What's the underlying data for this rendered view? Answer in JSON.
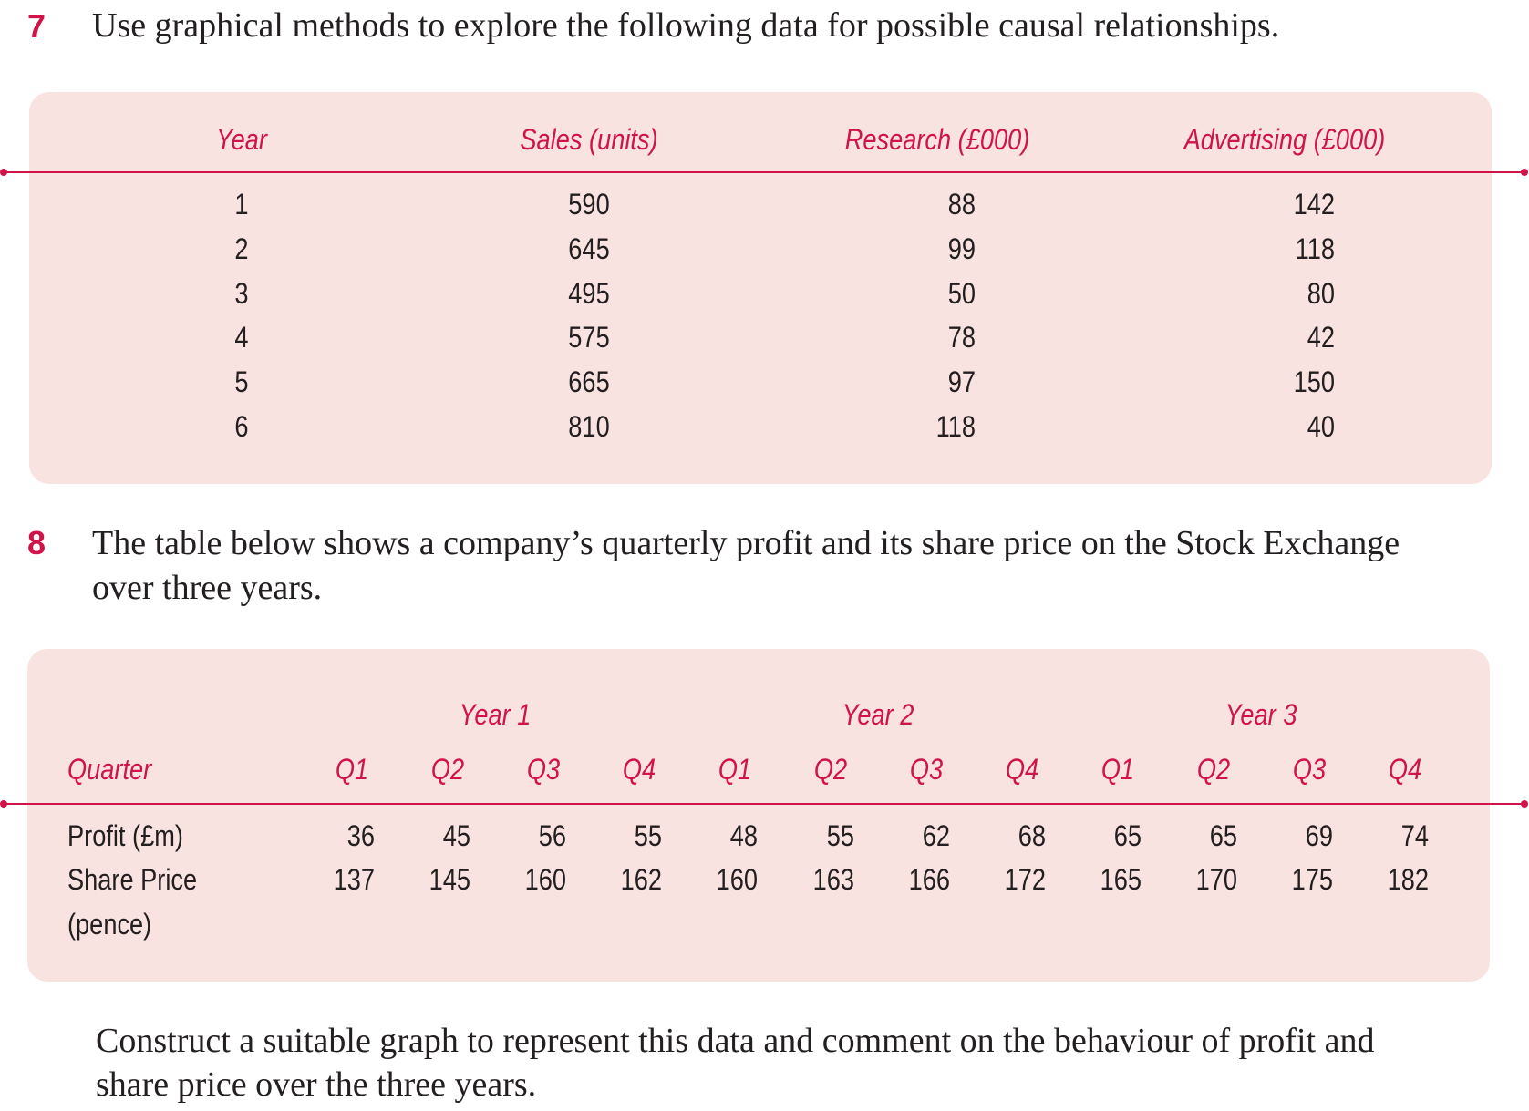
{
  "q7": {
    "number": "7",
    "text": "Use graphical methods to explore the following data for possible causal relationships.",
    "table": {
      "headers": [
        "Year",
        "Sales (units)",
        "Research (£000)",
        "Advertising (£000)"
      ],
      "rows": [
        [
          "1",
          "590",
          "88",
          "142"
        ],
        [
          "2",
          "645",
          "99",
          "118"
        ],
        [
          "3",
          "495",
          "50",
          "80"
        ],
        [
          "4",
          "575",
          "78",
          "42"
        ],
        [
          "5",
          "665",
          "97",
          "150"
        ],
        [
          "6",
          "810",
          "118",
          "40"
        ]
      ]
    }
  },
  "q8": {
    "number": "8",
    "text_line1": "The table below shows a company’s quarterly profit and its share price on the Stock Exchange",
    "text_line2": "over three years.",
    "table": {
      "years": [
        "Year 1",
        "Year 2",
        "Year 3"
      ],
      "quarter_label": "Quarter",
      "quarters": [
        "Q1",
        "Q2",
        "Q3",
        "Q4",
        "Q1",
        "Q2",
        "Q3",
        "Q4",
        "Q1",
        "Q2",
        "Q3",
        "Q4"
      ],
      "profit_label": "Profit (£m)",
      "profit": [
        "36",
        "45",
        "56",
        "55",
        "48",
        "55",
        "62",
        "68",
        "65",
        "65",
        "69",
        "74"
      ],
      "share_label_1": "Share Price",
      "share_label_2": "(pence)",
      "share_price": [
        "137",
        "145",
        "160",
        "162",
        "160",
        "163",
        "166",
        "172",
        "165",
        "170",
        "175",
        "182"
      ]
    },
    "instruction_line1": "Construct a suitable graph to represent this data and comment on the behaviour of profit and",
    "instruction_line2": "share price over the three years."
  },
  "colors": {
    "accent": "#d0144a",
    "table_bg": "#f8e3e0",
    "text": "#231f20"
  }
}
